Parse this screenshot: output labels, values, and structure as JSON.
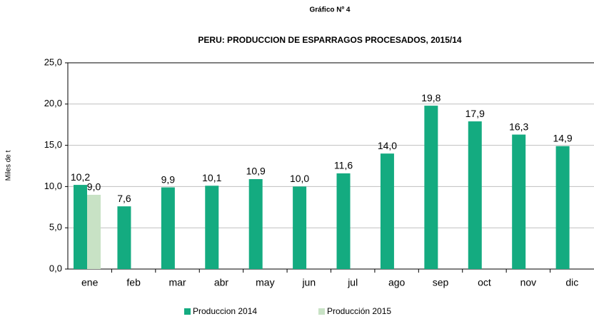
{
  "chart_data": {
    "type": "bar",
    "title": "Gráfico Nº 4",
    "subtitle": "PERU: PRODUCCION DE ESPARRAGOS PROCESADOS, 2015/14",
    "y_label": "Miles de t",
    "categories": [
      "ene",
      "feb",
      "mar",
      "abr",
      "may",
      "jun",
      "jul",
      "ago",
      "sep",
      "oct",
      "nov",
      "dic"
    ],
    "series": [
      {
        "name": "Produccion 2014",
        "color": "#14ab80",
        "values": [
          10.2,
          7.6,
          9.9,
          10.1,
          10.9,
          10.0,
          11.6,
          14.0,
          19.8,
          17.9,
          16.3,
          14.9
        ],
        "value_labels": [
          "10,2",
          "7,6",
          "9,9",
          "10,1",
          "10,9",
          "10,0",
          "11,6",
          "14,0",
          "19,8",
          "17,9",
          "16,3",
          "14,9"
        ]
      },
      {
        "name": "Producción  2015",
        "color": "#c8e2c5",
        "values": [
          9.0,
          null,
          null,
          null,
          null,
          null,
          null,
          null,
          null,
          null,
          null,
          null
        ],
        "value_labels": [
          "9,0",
          null,
          null,
          null,
          null,
          null,
          null,
          null,
          null,
          null,
          null,
          null
        ]
      }
    ],
    "ylim": [
      0,
      25
    ],
    "yticks": [
      {
        "value": 0,
        "label": "0,0"
      },
      {
        "value": 5,
        "label": "5,0"
      },
      {
        "value": 10,
        "label": "10,0"
      },
      {
        "value": 15,
        "label": "15,0"
      },
      {
        "value": 20,
        "label": "20,0"
      },
      {
        "value": 25,
        "label": "25,0"
      }
    ],
    "grid": true,
    "legend": "bottom"
  }
}
